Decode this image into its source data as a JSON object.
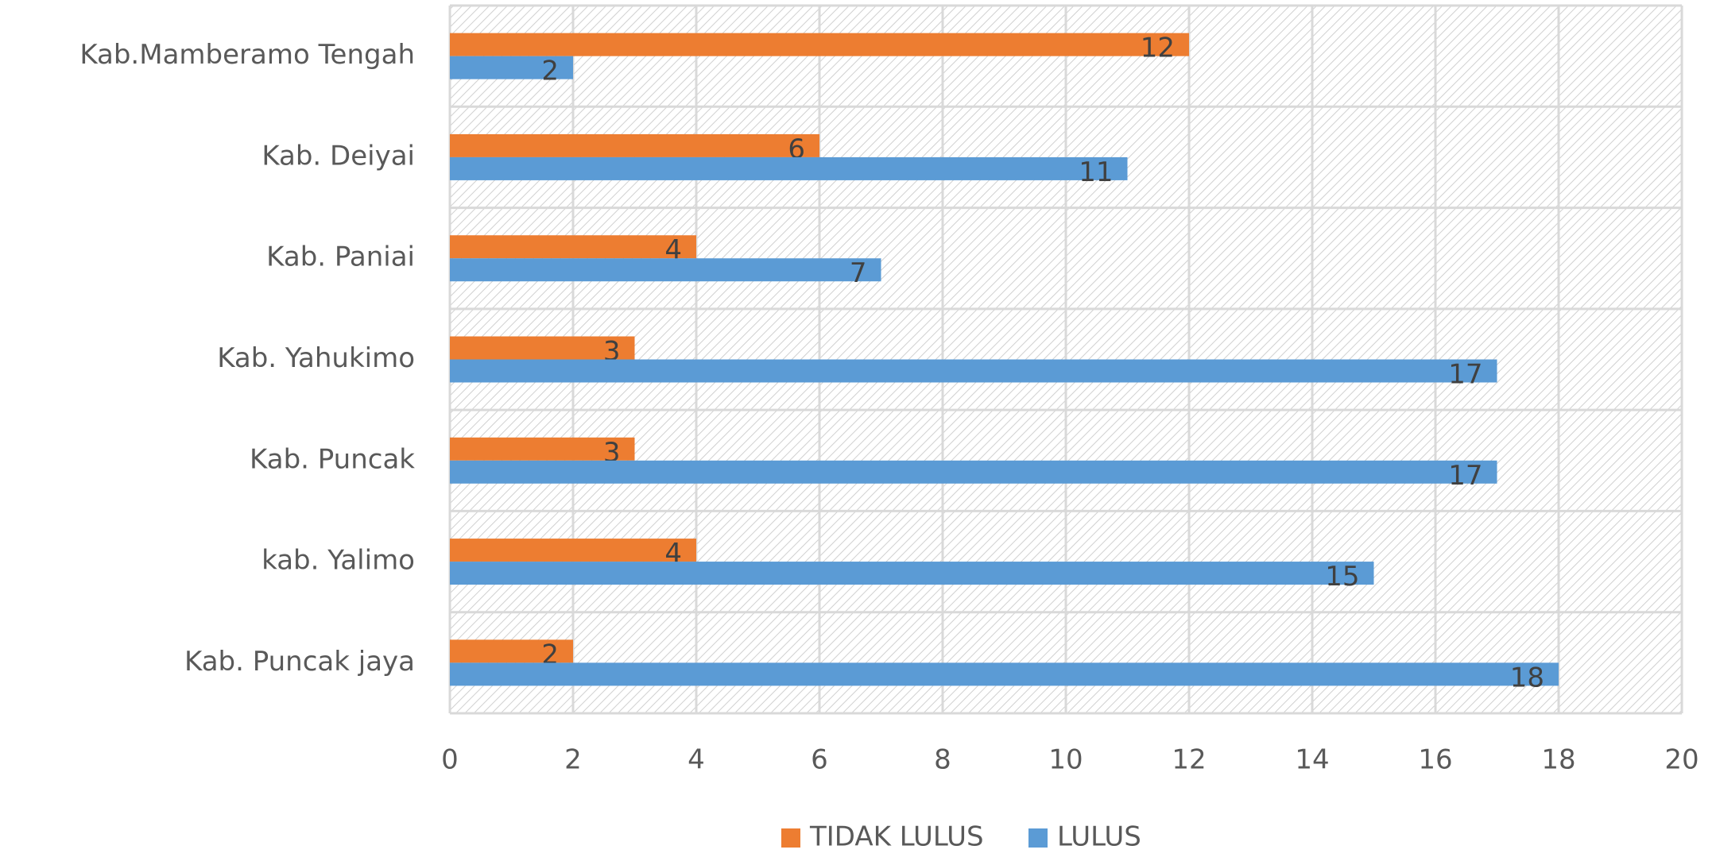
{
  "chart_data": {
    "type": "bar",
    "orientation": "horizontal",
    "categories": [
      "Kab.Mamberamo Tengah",
      "Kab. Deiyai",
      "Kab. Paniai",
      "Kab. Yahukimo",
      "Kab. Puncak",
      "kab. Yalimo",
      "Kab. Puncak jaya"
    ],
    "series": [
      {
        "name": "TIDAK LULUS",
        "color": "#ed7d31",
        "values": [
          12,
          6,
          4,
          3,
          3,
          4,
          2
        ]
      },
      {
        "name": "LULUS",
        "color": "#5b9bd5",
        "values": [
          2,
          11,
          7,
          17,
          17,
          15,
          18
        ]
      }
    ],
    "xlim": [
      0,
      20
    ],
    "xticks": [
      0,
      2,
      4,
      6,
      8,
      10,
      12,
      14,
      16,
      18,
      20
    ],
    "grid": true,
    "legend": "bottom"
  }
}
